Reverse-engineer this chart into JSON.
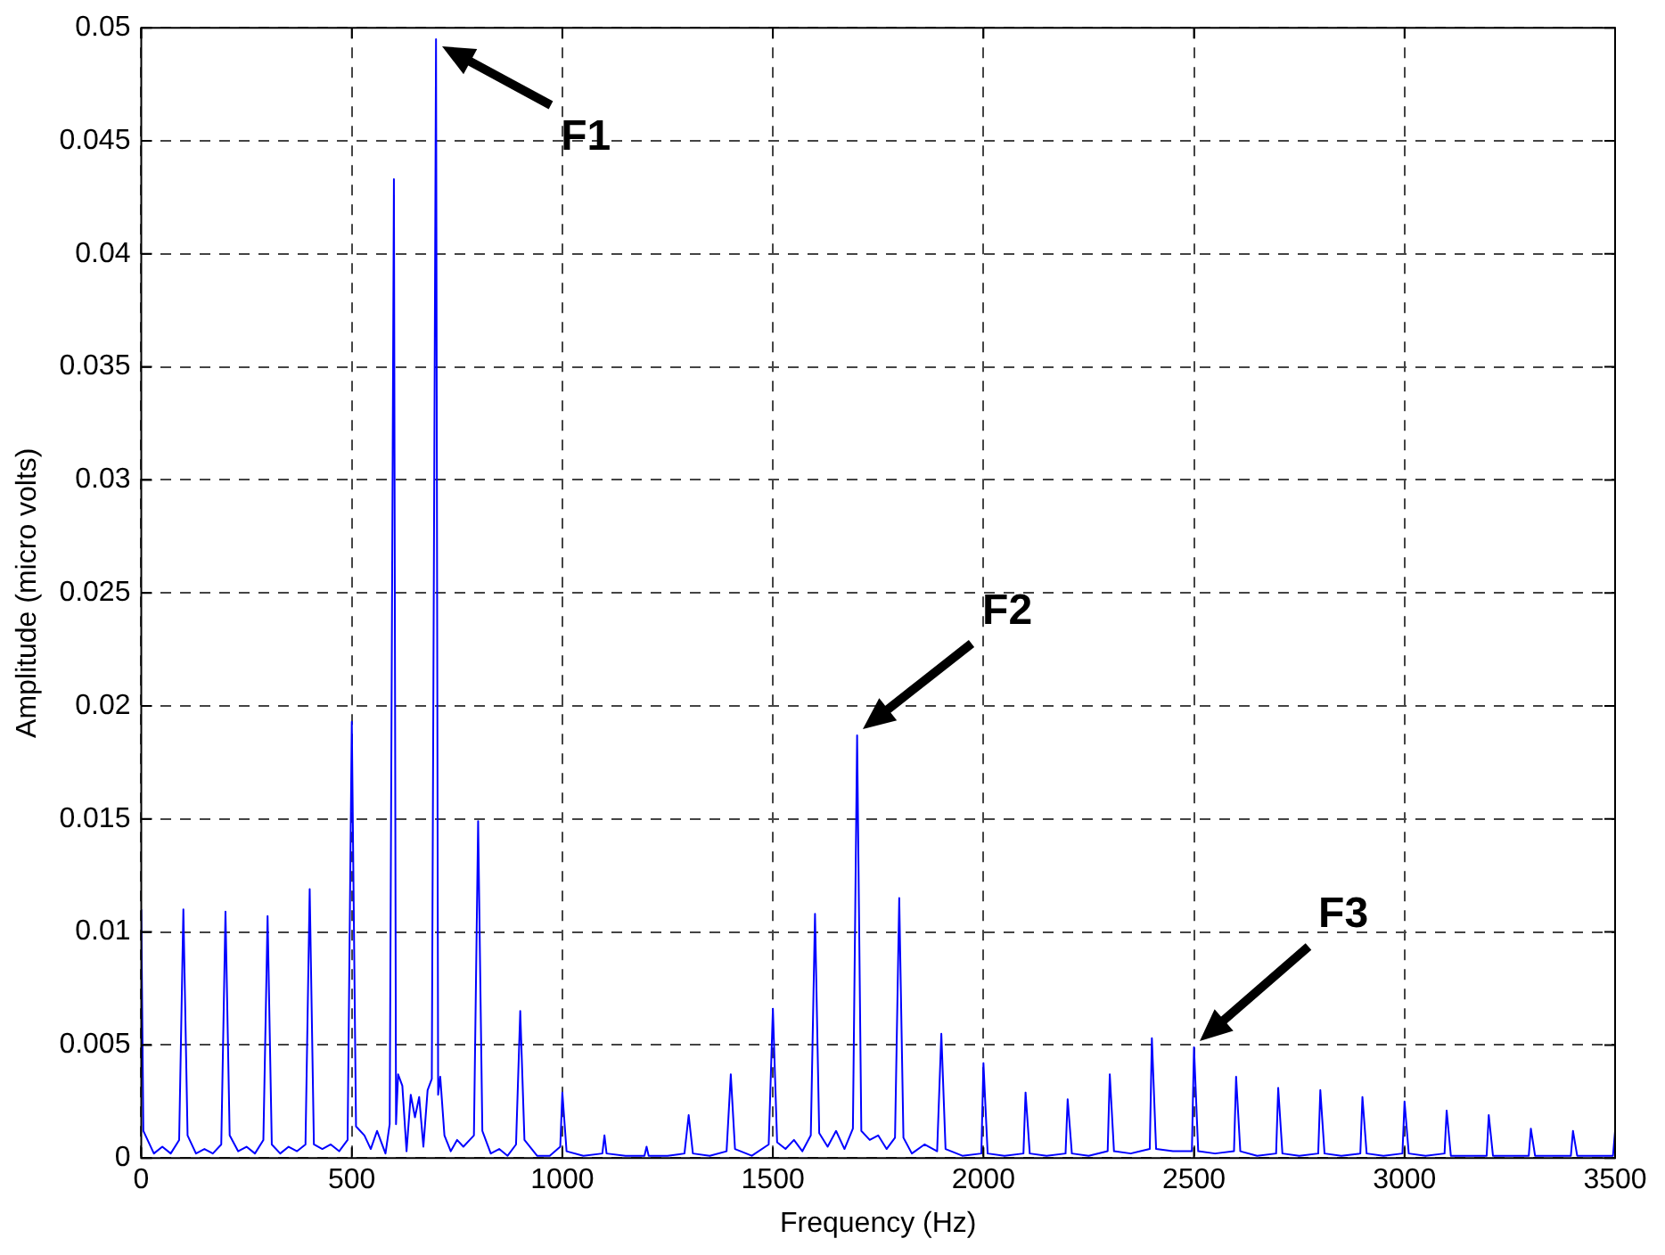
{
  "chart_data": {
    "type": "line",
    "xlabel": "Frequency (Hz)",
    "ylabel": "Amplitude (micro volts)",
    "xlim": [
      0,
      3500
    ],
    "xticks": [
      0,
      500,
      1000,
      1500,
      2000,
      2500,
      3000,
      3500
    ],
    "ylim": [
      0,
      0.05
    ],
    "yticks": [
      0,
      0.005,
      0.01,
      0.015,
      0.02,
      0.025,
      0.03,
      0.035,
      0.04,
      0.045,
      0.05
    ],
    "grid": true,
    "legend": false,
    "marker": "none",
    "line_style": "solid",
    "annotations": [
      "F1",
      "F2",
      "F3"
    ],
    "series": [
      {
        "color": "#0000ff",
        "x": [
          0,
          5,
          15,
          30,
          50,
          70,
          90,
          100,
          110,
          130,
          150,
          170,
          190,
          200,
          210,
          230,
          250,
          270,
          290,
          300,
          310,
          330,
          350,
          370,
          390,
          400,
          410,
          430,
          450,
          470,
          490,
          500,
          510,
          530,
          545,
          560,
          580,
          590,
          600,
          605,
          610,
          620,
          630,
          640,
          650,
          660,
          670,
          680,
          690,
          700,
          705,
          710,
          720,
          735,
          750,
          765,
          780,
          790,
          800,
          810,
          830,
          850,
          870,
          890,
          900,
          910,
          940,
          970,
          995,
          1000,
          1010,
          1050,
          1095,
          1100,
          1105,
          1150,
          1195,
          1200,
          1205,
          1250,
          1290,
          1300,
          1310,
          1350,
          1390,
          1400,
          1410,
          1450,
          1490,
          1500,
          1510,
          1530,
          1550,
          1570,
          1590,
          1600,
          1610,
          1630,
          1650,
          1670,
          1690,
          1700,
          1710,
          1730,
          1750,
          1770,
          1790,
          1800,
          1810,
          1830,
          1860,
          1890,
          1900,
          1910,
          1950,
          1995,
          2000,
          2010,
          2050,
          2095,
          2100,
          2110,
          2150,
          2195,
          2200,
          2210,
          2250,
          2295,
          2300,
          2310,
          2350,
          2395,
          2400,
          2410,
          2450,
          2495,
          2500,
          2510,
          2550,
          2595,
          2600,
          2610,
          2650,
          2695,
          2700,
          2710,
          2750,
          2795,
          2800,
          2810,
          2850,
          2895,
          2900,
          2910,
          2950,
          2995,
          3000,
          3010,
          3050,
          3095,
          3100,
          3110,
          3150,
          3195,
          3200,
          3210,
          3250,
          3295,
          3300,
          3310,
          3350,
          3395,
          3400,
          3410,
          3450,
          3495,
          3500
        ],
        "values": [
          0.011,
          0.0012,
          0.0008,
          0.0002,
          0.0005,
          0.0002,
          0.0008,
          0.011,
          0.001,
          0.0002,
          0.0004,
          0.0002,
          0.0006,
          0.0109,
          0.001,
          0.0003,
          0.0005,
          0.0002,
          0.0008,
          0.0107,
          0.0006,
          0.0002,
          0.0005,
          0.0003,
          0.0006,
          0.0119,
          0.0006,
          0.0004,
          0.0006,
          0.0003,
          0.0008,
          0.0193,
          0.0014,
          0.001,
          0.0004,
          0.0012,
          0.0002,
          0.0015,
          0.0433,
          0.0015,
          0.0037,
          0.0032,
          0.0003,
          0.0028,
          0.0018,
          0.0027,
          0.0005,
          0.003,
          0.0035,
          0.0495,
          0.0028,
          0.0036,
          0.001,
          0.0003,
          0.0008,
          0.0005,
          0.0008,
          0.001,
          0.0149,
          0.0012,
          0.0002,
          0.0004,
          0.0001,
          0.0006,
          0.0065,
          0.0008,
          0.0001,
          0.0001,
          0.0005,
          0.0029,
          0.0003,
          0.0001,
          0.0002,
          0.001,
          0.0002,
          0.0001,
          0.0001,
          0.0005,
          0.0001,
          0.0001,
          0.0002,
          0.0019,
          0.0002,
          0.0001,
          0.0003,
          0.0037,
          0.0004,
          0.0001,
          0.0006,
          0.0066,
          0.0007,
          0.0004,
          0.0008,
          0.0003,
          0.001,
          0.0108,
          0.0011,
          0.0005,
          0.0012,
          0.0004,
          0.0013,
          0.0187,
          0.0012,
          0.0008,
          0.001,
          0.0004,
          0.0009,
          0.0115,
          0.0009,
          0.0002,
          0.0006,
          0.0003,
          0.0055,
          0.0004,
          0.0001,
          0.0002,
          0.0042,
          0.0002,
          0.0001,
          0.0002,
          0.0029,
          0.0002,
          0.0001,
          0.0002,
          0.0026,
          0.0002,
          0.0001,
          0.0003,
          0.0037,
          0.0003,
          0.0002,
          0.0004,
          0.0053,
          0.0004,
          0.0003,
          0.0003,
          0.0049,
          0.0003,
          0.0002,
          0.0003,
          0.0036,
          0.0003,
          0.0001,
          0.0002,
          0.0031,
          0.0002,
          0.0001,
          0.0002,
          0.003,
          0.0002,
          0.0001,
          0.0002,
          0.0027,
          0.0002,
          0.0001,
          0.0002,
          0.0025,
          0.0002,
          0.0001,
          0.0002,
          0.0021,
          0.0001,
          0.0001,
          0.0001,
          0.0019,
          0.0001,
          0.0001,
          0.0001,
          0.0013,
          0.0001,
          0.0001,
          0.0001,
          0.0012,
          0.0001,
          0.0001,
          0.0001,
          0.0012
        ]
      }
    ]
  }
}
